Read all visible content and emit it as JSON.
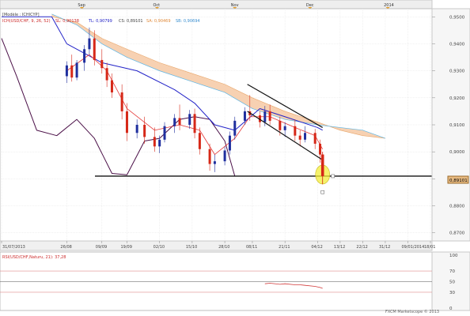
{
  "header": {
    "months": [
      {
        "label": "Sep",
        "date": "2013-09"
      },
      {
        "label": "Oct",
        "date": "2013-10"
      },
      {
        "label": "Nov",
        "date": "2013-11"
      },
      {
        "label": "Dec",
        "date": "2013-12"
      },
      {
        "label": "2014",
        "date": "2014"
      }
    ]
  },
  "legend": {
    "model": "[Modèle : ICHICYP]",
    "indicator": "ICH(USD/CHF, 9, 26, 52)",
    "sl": "SL: 0,90138",
    "tl": "TL: 0,90799",
    "cs": "CS: 0,89101",
    "sa": "SA: 0,90469",
    "sb": "SB: 0,90694"
  },
  "price_axis": {
    "ticks": [
      "0,9500",
      "0,9400",
      "0,9300",
      "0,9200",
      "0,9100",
      "0,9000",
      "0,8900",
      "0,8800",
      "0,8700"
    ],
    "current_price": "0,89101"
  },
  "date_axis": {
    "ticks": [
      "31/07/2013",
      "26/08",
      "09/09",
      "19/09",
      "02/10",
      "15/10",
      "28/10",
      "08/11",
      "21/11",
      "04/12",
      "13/12",
      "22/12",
      "31/12",
      "09/01/2014",
      "18/01"
    ]
  },
  "rsi_panel": {
    "title": "RSI(USD/CHF,Naturu, 21): 37,28",
    "levels": [
      "100",
      "70",
      "50",
      "30",
      "0"
    ]
  },
  "footer": {
    "copyright": "FXCM Marketscope © 2013"
  },
  "colors": {
    "bull_candle": "#1f2f9e",
    "bear_candle": "#d62818",
    "tenkan": "#e53939",
    "kijun": "#2323c8",
    "chikou": "#4b1048",
    "kumo_fill": "#f6c9a4",
    "span_b": "#5bb6e8",
    "highlight": "#f3ee3a",
    "support_line": "#111111"
  },
  "chart_data": {
    "type": "candlestick",
    "symbol": "USD/CHF",
    "ylim": [
      0.867,
      0.953
    ],
    "x_range": [
      "2013-07-31",
      "2014-01-18"
    ],
    "series": [
      {
        "name": "ICH(USD/CHF, 9, 26, 52)",
        "candles": [
          {
            "t": "2013-08-26",
            "o": 0.928,
            "h": 0.9335,
            "l": 0.9255,
            "c": 0.932
          },
          {
            "t": "2013-08-28",
            "o": 0.932,
            "h": 0.936,
            "l": 0.926,
            "c": 0.9275
          },
          {
            "t": "2013-08-30",
            "o": 0.9275,
            "h": 0.934,
            "l": 0.9265,
            "c": 0.933
          },
          {
            "t": "2013-09-02",
            "o": 0.933,
            "h": 0.9395,
            "l": 0.93,
            "c": 0.938
          },
          {
            "t": "2013-09-04",
            "o": 0.938,
            "h": 0.946,
            "l": 0.936,
            "c": 0.942
          },
          {
            "t": "2013-09-06",
            "o": 0.942,
            "h": 0.945,
            "l": 0.932,
            "c": 0.934
          },
          {
            "t": "2013-09-09",
            "o": 0.934,
            "h": 0.938,
            "l": 0.929,
            "c": 0.931
          },
          {
            "t": "2013-09-11",
            "o": 0.931,
            "h": 0.933,
            "l": 0.924,
            "c": 0.9265
          },
          {
            "t": "2013-09-13",
            "o": 0.9265,
            "h": 0.929,
            "l": 0.92,
            "c": 0.922
          },
          {
            "t": "2013-09-17",
            "o": 0.922,
            "h": 0.925,
            "l": 0.912,
            "c": 0.915
          },
          {
            "t": "2013-09-19",
            "o": 0.915,
            "h": 0.918,
            "l": 0.904,
            "c": 0.907
          },
          {
            "t": "2013-09-23",
            "o": 0.907,
            "h": 0.912,
            "l": 0.905,
            "c": 0.91
          },
          {
            "t": "2013-09-26",
            "o": 0.91,
            "h": 0.913,
            "l": 0.903,
            "c": 0.9055
          },
          {
            "t": "2013-09-30",
            "o": 0.9055,
            "h": 0.909,
            "l": 0.9,
            "c": 0.902
          },
          {
            "t": "2013-10-02",
            "o": 0.902,
            "h": 0.906,
            "l": 0.8995,
            "c": 0.9045
          },
          {
            "t": "2013-10-04",
            "o": 0.9045,
            "h": 0.911,
            "l": 0.9035,
            "c": 0.9095
          },
          {
            "t": "2013-10-08",
            "o": 0.9095,
            "h": 0.914,
            "l": 0.907,
            "c": 0.9125
          },
          {
            "t": "2013-10-10",
            "o": 0.9125,
            "h": 0.9175,
            "l": 0.908,
            "c": 0.91
          },
          {
            "t": "2013-10-14",
            "o": 0.91,
            "h": 0.9155,
            "l": 0.9085,
            "c": 0.914
          },
          {
            "t": "2013-10-16",
            "o": 0.914,
            "h": 0.916,
            "l": 0.905,
            "c": 0.907
          },
          {
            "t": "2013-10-18",
            "o": 0.907,
            "h": 0.909,
            "l": 0.899,
            "c": 0.901
          },
          {
            "t": "2013-10-22",
            "o": 0.901,
            "h": 0.903,
            "l": 0.893,
            "c": 0.8955
          },
          {
            "t": "2013-10-24",
            "o": 0.8955,
            "h": 0.899,
            "l": 0.8925,
            "c": 0.8965
          },
          {
            "t": "2013-10-28",
            "o": 0.8965,
            "h": 0.902,
            "l": 0.895,
            "c": 0.9005
          },
          {
            "t": "2013-10-30",
            "o": 0.9005,
            "h": 0.9075,
            "l": 0.899,
            "c": 0.906
          },
          {
            "t": "2013-11-01",
            "o": 0.906,
            "h": 0.913,
            "l": 0.9045,
            "c": 0.9115
          },
          {
            "t": "2013-11-05",
            "o": 0.9115,
            "h": 0.9165,
            "l": 0.91,
            "c": 0.915
          },
          {
            "t": "2013-11-07",
            "o": 0.915,
            "h": 0.921,
            "l": 0.9115,
            "c": 0.9135
          },
          {
            "t": "2013-11-11",
            "o": 0.9135,
            "h": 0.915,
            "l": 0.909,
            "c": 0.911
          },
          {
            "t": "2013-11-13",
            "o": 0.911,
            "h": 0.917,
            "l": 0.9095,
            "c": 0.915
          },
          {
            "t": "2013-11-15",
            "o": 0.915,
            "h": 0.9175,
            "l": 0.91,
            "c": 0.9115
          },
          {
            "t": "2013-11-19",
            "o": 0.9115,
            "h": 0.913,
            "l": 0.906,
            "c": 0.908
          },
          {
            "t": "2013-11-21",
            "o": 0.908,
            "h": 0.911,
            "l": 0.9055,
            "c": 0.9095
          },
          {
            "t": "2013-11-25",
            "o": 0.9095,
            "h": 0.912,
            "l": 0.904,
            "c": 0.906
          },
          {
            "t": "2013-11-27",
            "o": 0.906,
            "h": 0.908,
            "l": 0.902,
            "c": 0.9045
          },
          {
            "t": "2013-11-29",
            "o": 0.9045,
            "h": 0.9095,
            "l": 0.9035,
            "c": 0.907
          },
          {
            "t": "2013-12-03",
            "o": 0.907,
            "h": 0.9085,
            "l": 0.901,
            "c": 0.903
          },
          {
            "t": "2013-12-05",
            "o": 0.903,
            "h": 0.9045,
            "l": 0.896,
            "c": 0.899
          },
          {
            "t": "2013-12-06",
            "o": 0.899,
            "h": 0.9,
            "l": 0.888,
            "c": 0.891
          }
        ]
      },
      {
        "name": "SA: 0,90469",
        "points": [
          [
            "2013-08-20",
            0.95
          ],
          [
            "2013-08-30",
            0.948
          ],
          [
            "2013-09-09",
            0.942
          ],
          [
            "2013-09-19",
            0.938
          ],
          [
            "2013-10-02",
            0.933
          ],
          [
            "2013-10-15",
            0.929
          ],
          [
            "2013-10-28",
            0.925
          ],
          [
            "2013-11-08",
            0.92
          ],
          [
            "2013-11-21",
            0.915
          ],
          [
            "2013-12-04",
            0.911
          ],
          [
            "2013-12-13",
            0.908
          ],
          [
            "2013-12-22",
            0.906
          ],
          [
            "2013-12-31",
            0.905
          ]
        ]
      },
      {
        "name": "SB: 0,90694",
        "points": [
          [
            "2013-08-20",
            0.951
          ],
          [
            "2013-08-30",
            0.947
          ],
          [
            "2013-09-09",
            0.94
          ],
          [
            "2013-09-19",
            0.935
          ],
          [
            "2013-10-02",
            0.93
          ],
          [
            "2013-10-15",
            0.926
          ],
          [
            "2013-10-28",
            0.922
          ],
          [
            "2013-11-08",
            0.916
          ],
          [
            "2013-11-21",
            0.912
          ],
          [
            "2013-12-04",
            0.91
          ],
          [
            "2013-12-13",
            0.909
          ],
          [
            "2013-12-22",
            0.908
          ],
          [
            "2013-12-31",
            0.905
          ]
        ]
      },
      {
        "name": "TL: 0,90799",
        "points": [
          [
            "2013-07-31",
            0.95
          ],
          [
            "2013-08-20",
            0.95
          ],
          [
            "2013-08-26",
            0.94
          ],
          [
            "2013-09-09",
            0.933
          ],
          [
            "2013-09-23",
            0.93
          ],
          [
            "2013-10-08",
            0.923
          ],
          [
            "2013-10-16",
            0.918
          ],
          [
            "2013-10-24",
            0.91
          ],
          [
            "2013-11-01",
            0.908
          ],
          [
            "2013-11-11",
            0.916
          ],
          [
            "2013-11-21",
            0.913
          ],
          [
            "2013-12-04",
            0.909
          ],
          [
            "2013-12-06",
            0.908
          ]
        ]
      },
      {
        "name": "SL: 0,90138",
        "points": [
          [
            "2013-08-26",
            0.93
          ],
          [
            "2013-09-04",
            0.936
          ],
          [
            "2013-09-11",
            0.93
          ],
          [
            "2013-09-19",
            0.916
          ],
          [
            "2013-09-30",
            0.908
          ],
          [
            "2013-10-10",
            0.91
          ],
          [
            "2013-10-18",
            0.908
          ],
          [
            "2013-10-24",
            0.899
          ],
          [
            "2013-11-01",
            0.905
          ],
          [
            "2013-11-07",
            0.913
          ],
          [
            "2013-11-15",
            0.913
          ],
          [
            "2013-11-25",
            0.909
          ],
          [
            "2013-12-03",
            0.906
          ],
          [
            "2013-12-06",
            0.901
          ]
        ]
      },
      {
        "name": "CS: 0,89101",
        "points": [
          [
            "2013-07-31",
            0.942
          ],
          [
            "2013-08-06",
            0.928
          ],
          [
            "2013-08-14",
            0.908
          ],
          [
            "2013-08-22",
            0.906
          ],
          [
            "2013-08-30",
            0.912
          ],
          [
            "2013-09-06",
            0.905
          ],
          [
            "2013-09-13",
            0.892
          ],
          [
            "2013-09-19",
            0.8915
          ],
          [
            "2013-09-26",
            0.904
          ],
          [
            "2013-10-02",
            0.905
          ],
          [
            "2013-10-10",
            0.912
          ],
          [
            "2013-10-16",
            0.913
          ],
          [
            "2013-10-22",
            0.912
          ],
          [
            "2013-10-28",
            0.904
          ],
          [
            "2013-11-01",
            0.891
          ]
        ]
      },
      {
        "name": "RSI(USD/CHF,Naturu, 21): 37,28",
        "points": [
          [
            "2013-11-13",
            46
          ],
          [
            "2013-11-15",
            47
          ],
          [
            "2013-11-19",
            45
          ],
          [
            "2013-11-21",
            46
          ],
          [
            "2013-11-25",
            44
          ],
          [
            "2013-11-27",
            44
          ],
          [
            "2013-11-29",
            43
          ],
          [
            "2013-12-03",
            41
          ],
          [
            "2013-12-05",
            39
          ],
          [
            "2013-12-06",
            37.28
          ]
        ]
      }
    ],
    "annotations": {
      "channel_upper": [
        [
          "2013-11-06",
          0.925
        ],
        [
          "2013-12-06",
          0.909
        ]
      ],
      "channel_lower": [
        [
          "2013-11-06",
          0.915
        ],
        [
          "2013-12-06",
          0.897
        ]
      ],
      "support": 0.891
    }
  }
}
